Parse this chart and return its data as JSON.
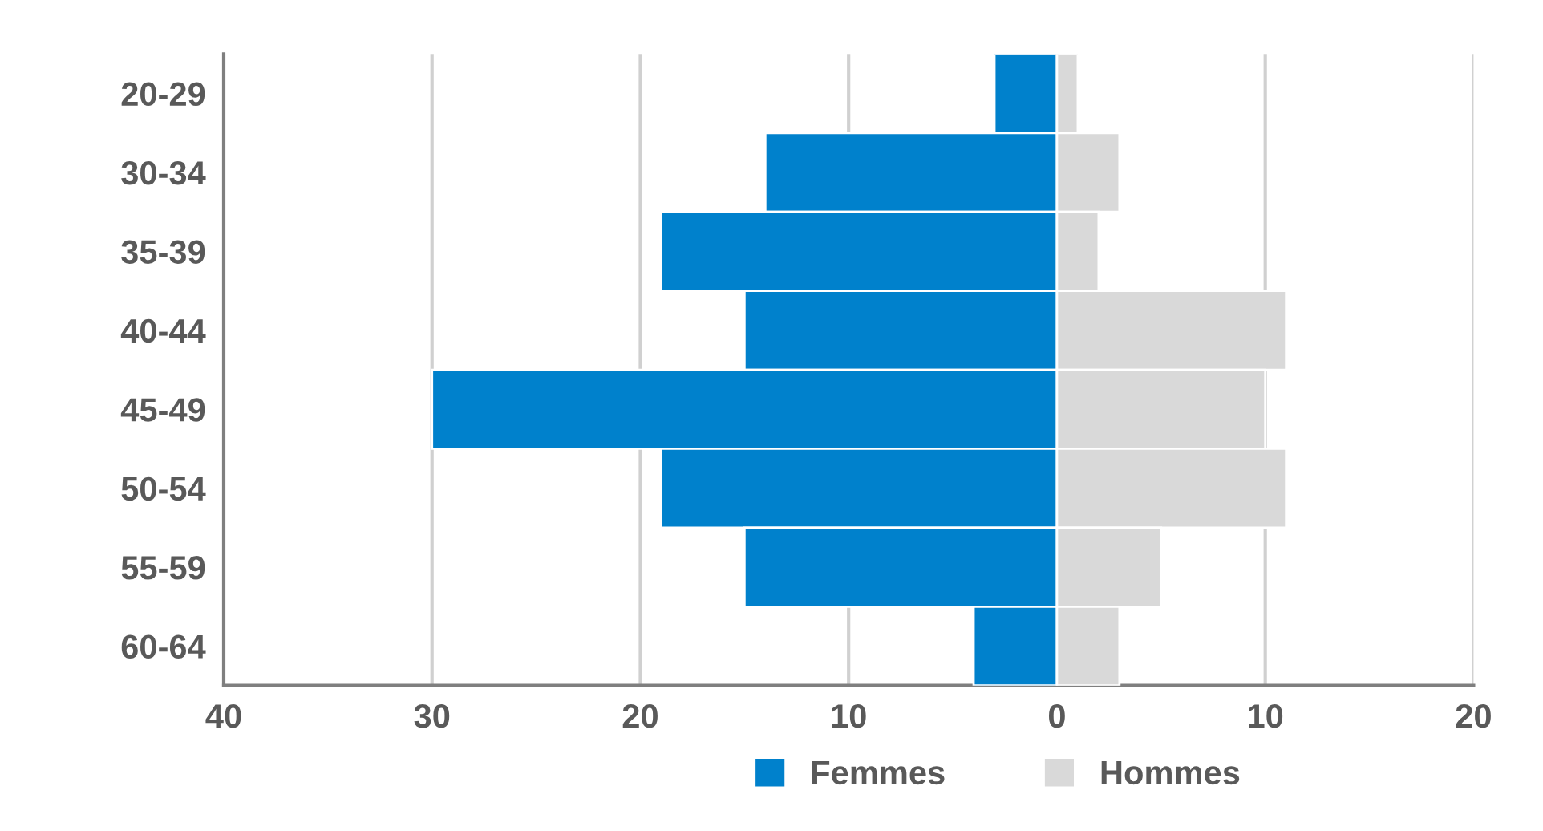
{
  "chart_data": {
    "type": "bar",
    "orientation": "horizontal",
    "stacked": true,
    "categories": [
      "20-29",
      "30-34",
      "35-39",
      "40-44",
      "45-49",
      "50-54",
      "55-59",
      "60-64"
    ],
    "series": [
      {
        "name": "Femmes",
        "color": "#0081cc",
        "values": [
          -3,
          -14,
          -19,
          -15,
          -30,
          -19,
          -15,
          -4
        ]
      },
      {
        "name": "Hommes",
        "color": "#d9d9d9",
        "values": [
          1,
          3,
          2,
          11,
          10,
          11,
          5,
          3
        ]
      }
    ],
    "xlim": [
      -40,
      20
    ],
    "xticks": [
      {
        "value": -40,
        "label": "40"
      },
      {
        "value": -30,
        "label": "30"
      },
      {
        "value": -20,
        "label": "20"
      },
      {
        "value": -10,
        "label": "10"
      },
      0,
      10,
      20
    ],
    "grid": "x",
    "legend": "bottom"
  }
}
